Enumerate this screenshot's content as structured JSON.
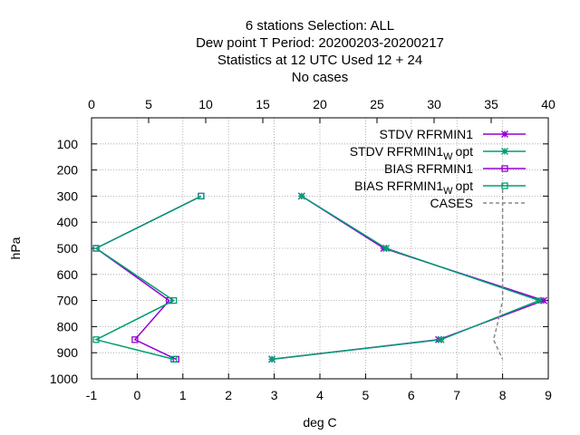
{
  "chart_data": {
    "type": "line",
    "title_lines": [
      "6 stations Selection: ALL",
      "Dew point T  Period: 20200203-20200217",
      "Statistics at 12 UTC  Used  12 + 24",
      "No cases"
    ],
    "xlabel": "deg C",
    "ylabel": "hPa",
    "xlim": [
      -1,
      9
    ],
    "x_ticks": [
      "-1",
      "0",
      "1",
      "2",
      "3",
      "4",
      "5",
      "6",
      "7",
      "8",
      "9"
    ],
    "x2lim": [
      0,
      40
    ],
    "x2_ticks": [
      "0",
      "5",
      "10",
      "15",
      "20",
      "25",
      "30",
      "35",
      "40"
    ],
    "ylim": [
      1000,
      0
    ],
    "y_ticks": [
      "100",
      "200",
      "300",
      "400",
      "500",
      "600",
      "700",
      "800",
      "900",
      "1000"
    ],
    "grid": true,
    "legend_position": "top-right",
    "series": [
      {
        "name": "STDV RFRMIN1",
        "color": "#9400D3",
        "marker": "star",
        "points": [
          [
            3.6,
            300
          ],
          [
            5.4,
            500
          ],
          [
            8.9,
            700
          ],
          [
            6.6,
            850
          ],
          [
            2.95,
            925
          ]
        ]
      },
      {
        "name": "STDV RFRMIN1",
        "name_sub": "W",
        "name_suffix": "opt",
        "color": "#009E73",
        "marker": "star",
        "points": [
          [
            3.6,
            300
          ],
          [
            5.45,
            500
          ],
          [
            8.8,
            700
          ],
          [
            6.65,
            850
          ],
          [
            2.95,
            925
          ]
        ]
      },
      {
        "name": "BIAS RFRMIN1",
        "color": "#9400D3",
        "marker": "square",
        "points": [
          [
            1.4,
            300
          ],
          [
            -0.9,
            500
          ],
          [
            0.7,
            700
          ],
          [
            -0.05,
            850
          ],
          [
            0.85,
            925
          ]
        ]
      },
      {
        "name": "BIAS RFRMIN1",
        "name_sub": "W",
        "name_suffix": "opt",
        "color": "#009E73",
        "marker": "square",
        "points": [
          [
            1.4,
            300
          ],
          [
            -0.9,
            500
          ],
          [
            0.8,
            700
          ],
          [
            -0.9,
            850
          ],
          [
            0.8,
            925
          ]
        ]
      },
      {
        "name": "CASES",
        "color": "#888888",
        "dashed": true,
        "axis": "x2",
        "points": [
          [
            36,
            250
          ],
          [
            36,
            500
          ],
          [
            36,
            700
          ],
          [
            35.5,
            800
          ],
          [
            35.2,
            850
          ],
          [
            36,
            925
          ]
        ]
      }
    ]
  }
}
